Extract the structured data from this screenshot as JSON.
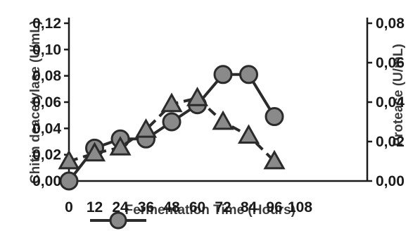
{
  "chart_data": {
    "type": "line",
    "xlabel": "Fermentation Time (Hours)",
    "ylabel_left": "Chitin deacetylase (U/mL)",
    "ylabel_right": "Protease (U/mL)",
    "x": [
      0,
      12,
      24,
      36,
      48,
      60,
      72,
      84,
      96,
      108
    ],
    "x_tick_labels": [
      "0",
      "12",
      "24",
      "36",
      "48",
      "60",
      "72",
      "84",
      "96",
      "108"
    ],
    "y_left_ticks": [
      "0,00",
      "0,02",
      "0,04",
      "0,06",
      "0,08",
      "0,10",
      "0,12"
    ],
    "y_right_ticks": [
      "0,00",
      "0,02",
      "0,04",
      "0,06",
      "0,08"
    ],
    "ylim_left": [
      0,
      0.12
    ],
    "ylim_right": [
      0,
      0.08
    ],
    "grid": false,
    "legend_position": "bottom",
    "series": [
      {
        "axis": "left",
        "marker": "circle",
        "line": "solid",
        "color": "#2b2b2b",
        "points": [
          [
            0,
            0.0
          ],
          [
            12,
            0.025
          ],
          [
            24,
            0.032
          ],
          [
            36,
            0.032
          ],
          [
            48,
            0.045
          ],
          [
            60,
            0.058
          ],
          [
            72,
            0.081
          ],
          [
            84,
            0.081
          ],
          [
            96,
            0.049
          ]
        ]
      },
      {
        "axis": "right",
        "marker": "triangle",
        "line": "dashed",
        "color": "#2b2b2b",
        "points": [
          [
            0,
            0.01
          ],
          [
            12,
            0.014
          ],
          [
            24,
            0.017
          ],
          [
            36,
            0.026
          ],
          [
            48,
            0.039
          ],
          [
            60,
            0.042
          ],
          [
            72,
            0.03
          ],
          [
            84,
            0.023
          ],
          [
            96,
            0.01
          ]
        ]
      }
    ]
  }
}
